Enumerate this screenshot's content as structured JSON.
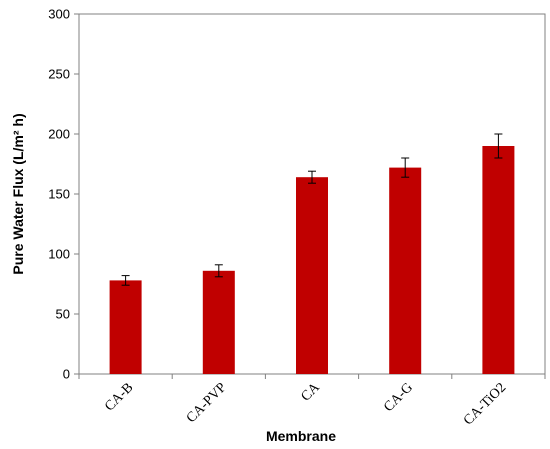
{
  "chart_data": {
    "type": "bar",
    "title": "",
    "xlabel": "Membrane",
    "ylabel": "Pure Water Flux (L/m² h)",
    "categories": [
      "CA-B",
      "CA-PVP",
      "CA",
      "CA-G",
      "CA-TiO2"
    ],
    "values": [
      78,
      86,
      164,
      172,
      190
    ],
    "errors": [
      4,
      5,
      5,
      8,
      10
    ],
    "ylim": [
      0,
      300
    ],
    "yticks": [
      0,
      50,
      100,
      150,
      200,
      250,
      300
    ],
    "grid": false,
    "legend": "none",
    "bar_color": "#C00000"
  }
}
